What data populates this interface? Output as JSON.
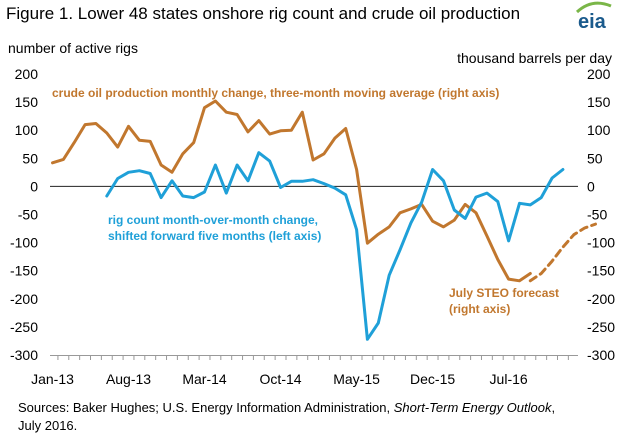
{
  "title": "Figure 1. Lower 48 states onshore rig count and crude oil  production",
  "brand": {
    "name": "eia",
    "green": "#7ab648",
    "blue": "#1a5a8c"
  },
  "left_axis_label": "number of active rigs",
  "right_axis_label": "thousand barrels per day",
  "source": {
    "prefix": "Sources: Baker Hughes; U.S. Energy Information Administration, ",
    "italic": "Short-Term Energy Outlook",
    "suffix": ", July 2016."
  },
  "colors": {
    "production": "#c1772e",
    "rigs": "#1fa0d8",
    "axis": "#999999"
  },
  "chart_data": {
    "type": "line",
    "x_ticks": [
      "Jan-13",
      "Aug-13",
      "Mar-14",
      "Oct-14",
      "May-15",
      "Dec-15",
      "Jul-16"
    ],
    "x_start": "2013-01",
    "y_left": {
      "ticks": [
        200,
        150,
        100,
        50,
        0,
        -50,
        -100,
        -150,
        -200,
        -250,
        -300
      ],
      "ylim": [
        -300,
        200
      ]
    },
    "y_right": {
      "ticks": [
        200,
        150,
        100,
        50,
        0,
        -50,
        -100,
        -150,
        -200,
        -250,
        -300
      ],
      "ylim": [
        -300,
        200
      ]
    },
    "series": [
      {
        "name": "crude oil production monthly change, three-month moving average (right axis)",
        "axis": "right",
        "start": "2013-01",
        "values": [
          42,
          48,
          78,
          110,
          112,
          95,
          70,
          107,
          82,
          80,
          38,
          25,
          58,
          78,
          140,
          152,
          132,
          128,
          97,
          117,
          93,
          99,
          100,
          132,
          47,
          58,
          86,
          103,
          30,
          -101,
          -85,
          -72,
          -47,
          -40,
          -32,
          -62,
          -72,
          -60,
          -32,
          -47,
          -88,
          -130,
          -165,
          -168,
          -155
        ]
      },
      {
        "name": "July STEO forecast (right axis)",
        "axis": "right",
        "dashed": true,
        "start": "2016-09",
        "values": [
          -168,
          -155,
          -133,
          -108,
          -86,
          -74,
          -67
        ]
      },
      {
        "name": "rig count month-over-month change, shifted forward five months (left axis)",
        "axis": "left",
        "start": "2013-06",
        "values": [
          -17,
          14,
          25,
          28,
          23,
          -20,
          10,
          -17,
          -20,
          -10,
          38,
          -12,
          38,
          10,
          60,
          45,
          -2,
          9,
          9,
          12,
          5,
          -3,
          -15,
          -77,
          -272,
          -243,
          -158,
          -113,
          -65,
          -28,
          30,
          10,
          -42,
          -57,
          -19,
          -12,
          -27,
          -97,
          -30,
          -33,
          -20,
          15,
          30
        ]
      }
    ],
    "annotations": {
      "production": "crude oil production monthly change, three-month moving average (right axis)",
      "rigs_line1": "rig count month-over-month change,",
      "rigs_line2": "shifted forward five months (left axis)",
      "forecast_line1": "July STEO forecast",
      "forecast_line2": "(right axis)"
    }
  }
}
